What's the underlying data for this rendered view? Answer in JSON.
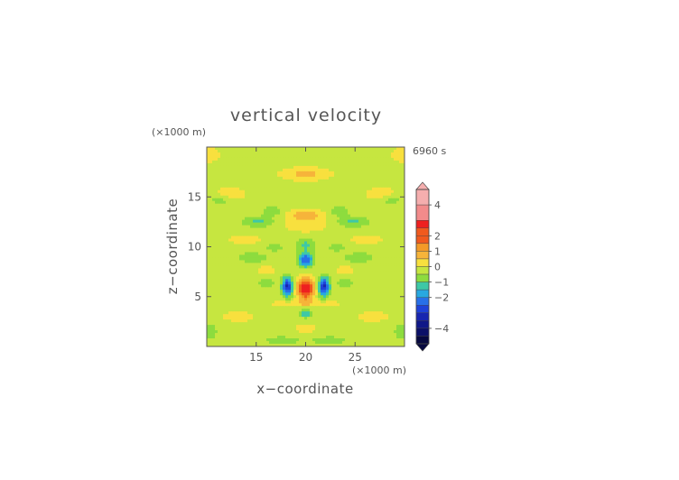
{
  "chart_data": {
    "type": "heatmap",
    "title": "vertical velocity",
    "xlabel": "x−coordinate",
    "ylabel": "z−coordinate",
    "x_unit": "(×1000 m)",
    "y_unit": "(×1000 m)",
    "time_label": "6960 s",
    "xlim": [
      10,
      30
    ],
    "ylim": [
      0,
      20
    ],
    "x_ticks": [
      15,
      20,
      25
    ],
    "y_ticks": [
      5,
      10,
      15
    ],
    "x_tick_labels": [
      "15",
      "20",
      "25"
    ],
    "y_tick_labels": [
      "5",
      "10",
      "15"
    ],
    "colorbar": {
      "vmin": -5,
      "vmax": 5,
      "ticks": [
        4,
        2,
        1,
        0,
        -1,
        -2,
        -4
      ],
      "tick_labels": [
        "4",
        "2",
        "1",
        "0",
        "−1",
        "−2",
        "−4"
      ],
      "extend": "both"
    },
    "field_features": [
      {
        "feature": "updraft core",
        "x": 20,
        "z": 5.8,
        "value": 3.0
      },
      {
        "feature": "downdraft lobe",
        "x": 18.2,
        "z": 6.0,
        "value": -2.8
      },
      {
        "feature": "downdraft lobe",
        "x": 21.8,
        "z": 6.0,
        "value": -2.8
      },
      {
        "feature": "downdraft aloft",
        "x": 20,
        "z": 8.6,
        "value": -2.2
      },
      {
        "feature": "weak updraft",
        "x": 20,
        "z": 13.2,
        "value": 0.9
      },
      {
        "feature": "weak updraft",
        "x": 20,
        "z": 17.3,
        "value": 0.6
      },
      {
        "feature": "weak downdraft",
        "x": 20,
        "z": 3.2,
        "value": -1.2
      }
    ]
  }
}
